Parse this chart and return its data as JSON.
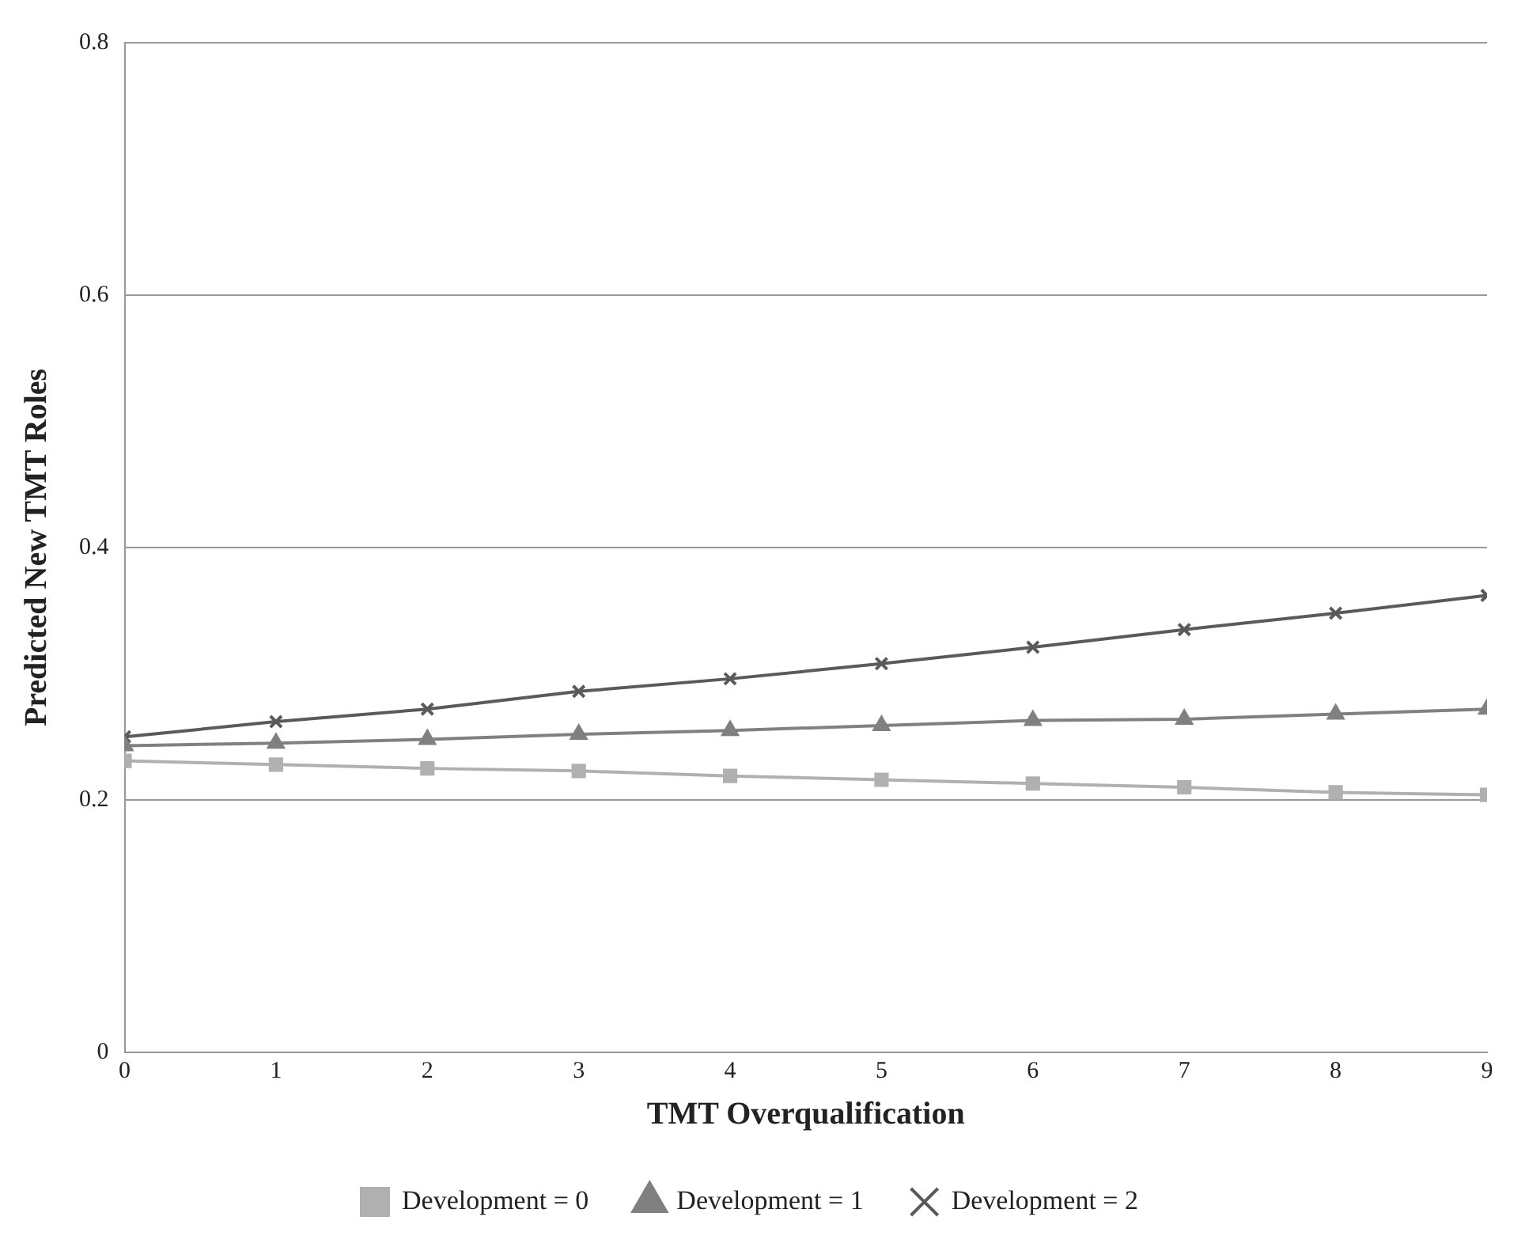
{
  "chart_data": {
    "type": "line",
    "xlabel": "TMT Overqualification",
    "ylabel": "Predicted New TMT Roles",
    "x": [
      0,
      1,
      2,
      3,
      4,
      5,
      6,
      7,
      8,
      9
    ],
    "xlim": [
      0,
      9
    ],
    "xticks": [
      0,
      1,
      2,
      3,
      4,
      5,
      6,
      7,
      8,
      9
    ],
    "ylim": [
      0,
      0.8
    ],
    "yticks": [
      0,
      0.2,
      0.4,
      0.6,
      0.8
    ],
    "grid": "y",
    "legend": "bottom",
    "line_style": "solid",
    "series": [
      {
        "name": "Development = 0",
        "color": "#b0b0b0",
        "marker": "square",
        "values": [
          0.231,
          0.228,
          0.225,
          0.223,
          0.219,
          0.216,
          0.213,
          0.21,
          0.206,
          0.204
        ]
      },
      {
        "name": "Development = 1",
        "color": "#808080",
        "marker": "triangle",
        "values": [
          0.243,
          0.245,
          0.248,
          0.252,
          0.255,
          0.259,
          0.263,
          0.264,
          0.268,
          0.272
        ]
      },
      {
        "name": "Development = 2",
        "color": "#5a5a5a",
        "marker": "cross",
        "values": [
          0.25,
          0.262,
          0.272,
          0.286,
          0.296,
          0.308,
          0.321,
          0.335,
          0.348,
          0.362
        ]
      }
    ]
  }
}
